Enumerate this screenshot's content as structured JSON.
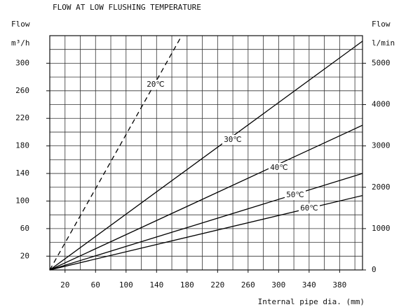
{
  "chart_data": {
    "type": "line",
    "title": "FLOW AT LOW FLUSHING TEMPERATURE",
    "ylabel": "Flow",
    "yunit": "m³/h",
    "y2label": "Flow",
    "y2unit": "l/min",
    "xlabel": "Internal pipe dia. (mm)",
    "xlim": [
      0,
      410
    ],
    "xticks": [
      20,
      60,
      100,
      140,
      180,
      220,
      260,
      300,
      340,
      380
    ],
    "xgrid": [
      20,
      40,
      60,
      80,
      100,
      120,
      140,
      160,
      180,
      200,
      220,
      240,
      260,
      280,
      300,
      320,
      340,
      360,
      380,
      400
    ],
    "ylim": [
      0,
      340
    ],
    "yticks": [
      20,
      60,
      100,
      140,
      180,
      220,
      260,
      300
    ],
    "ygrid": [
      20,
      40,
      60,
      80,
      100,
      120,
      140,
      160,
      180,
      200,
      220,
      240,
      260,
      280,
      300,
      320,
      340
    ],
    "y2lim": [
      0,
      5667
    ],
    "y2ticks": [
      0,
      1000,
      2000,
      3000,
      4000,
      5000
    ],
    "grid": true,
    "series": [
      {
        "name": "20℃",
        "color": "#000000",
        "style": "dashed",
        "x": [
          0,
          173
        ],
        "values": [
          0,
          340
        ]
      },
      {
        "name": "30℃",
        "color": "#000000",
        "style": "solid",
        "x": [
          0,
          410
        ],
        "values": [
          0,
          332
        ]
      },
      {
        "name": "40℃",
        "color": "#000000",
        "style": "solid",
        "x": [
          0,
          410
        ],
        "values": [
          0,
          210
        ]
      },
      {
        "name": "50℃",
        "color": "#000000",
        "style": "solid",
        "x": [
          0,
          410
        ],
        "values": [
          0,
          140
        ]
      },
      {
        "name": "60℃",
        "color": "#000000",
        "style": "solid",
        "x": [
          0,
          410
        ],
        "values": [
          0,
          108
        ]
      }
    ]
  }
}
